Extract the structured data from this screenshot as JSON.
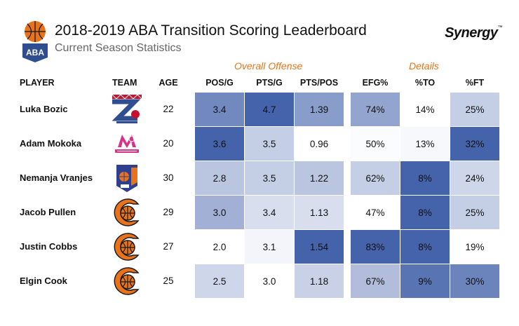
{
  "header": {
    "title": "2018-2019 ABA Transition Scoring Leaderboard",
    "subtitle": "Current Season Statistics",
    "league_logo_text": "ABA",
    "brand": "Synergy",
    "brand_mark": "™"
  },
  "groups": {
    "overall_offense": "Overall Offense",
    "details": "Details"
  },
  "columns": {
    "player": "PLAYER",
    "team": "TEAM",
    "age": "AGE",
    "pos_g": "POS/G",
    "pts_g": "PTS/G",
    "pts_pos": "PTS/POS",
    "efg": "EFG%",
    "to": "%TO",
    "ft": "%FT"
  },
  "colors": {
    "accent_orange": "#e8731a",
    "heat_scale": [
      "#ffffff",
      "#3b5ba6"
    ]
  },
  "chart_data": {
    "type": "table",
    "title": "2018-2019 ABA Transition Scoring Leaderboard",
    "subtitle": "Current Season Statistics",
    "columns": [
      "PLAYER",
      "TEAM",
      "AGE",
      "POS/G",
      "PTS/G",
      "PTS/POS",
      "EFG%",
      "%TO",
      "%FT"
    ],
    "rows": [
      {
        "player": "Luka Bozic",
        "team_icon": "zadar-logo-icon",
        "age": "22",
        "pos_g": "3.4",
        "pts_g": "4.7",
        "pts_pos": "1.39",
        "efg": "74%",
        "to": "14%",
        "ft": "25%",
        "shade": {
          "pos_g": 0.72,
          "pts_g": 0.95,
          "pts_pos": 0.6,
          "efg": 0.55,
          "to": 0.0,
          "ft": 0.3
        }
      },
      {
        "player": "Adam Mokoka",
        "team_icon": "mega-bemax-logo-icon",
        "age": "20",
        "pos_g": "3.6",
        "pts_g": "3.5",
        "pts_pos": "0.96",
        "efg": "50%",
        "to": "13%",
        "ft": "32%",
        "shade": {
          "pos_g": 0.95,
          "pts_g": 0.3,
          "pts_pos": 0.0,
          "efg": 0.02,
          "to": 0.04,
          "ft": 0.95
        }
      },
      {
        "player": "Nemanja Vranjes",
        "team_icon": "mornar-bar-logo-icon",
        "age": "30",
        "pos_g": "2.8",
        "pts_g": "3.5",
        "pts_pos": "1.22",
        "efg": "62%",
        "to": "8%",
        "ft": "24%",
        "shade": {
          "pos_g": 0.35,
          "pts_g": 0.3,
          "pts_pos": 0.35,
          "efg": 0.3,
          "to": 0.95,
          "ft": 0.25
        }
      },
      {
        "player": "Jacob Pullen",
        "team_icon": "cedevita-logo-icon",
        "age": "29",
        "pos_g": "3.0",
        "pts_g": "3.4",
        "pts_pos": "1.13",
        "efg": "47%",
        "to": "8%",
        "ft": "25%",
        "shade": {
          "pos_g": 0.48,
          "pts_g": 0.2,
          "pts_pos": 0.2,
          "efg": 0.0,
          "to": 0.95,
          "ft": 0.3
        }
      },
      {
        "player": "Justin Cobbs",
        "team_icon": "cedevita-logo-icon",
        "age": "27",
        "pos_g": "2.0",
        "pts_g": "3.1",
        "pts_pos": "1.54",
        "efg": "83%",
        "to": "8%",
        "ft": "19%",
        "shade": {
          "pos_g": 0.0,
          "pts_g": 0.06,
          "pts_pos": 0.95,
          "efg": 0.95,
          "to": 0.95,
          "ft": 0.0
        }
      },
      {
        "player": "Elgin Cook",
        "team_icon": "cedevita-logo-icon",
        "age": "25",
        "pos_g": "2.5",
        "pts_g": "3.0",
        "pts_pos": "1.18",
        "efg": "67%",
        "to": "9%",
        "ft": "30%",
        "shade": {
          "pos_g": 0.25,
          "pts_g": 0.0,
          "pts_pos": 0.28,
          "efg": 0.4,
          "to": 0.85,
          "ft": 0.75
        }
      }
    ]
  }
}
